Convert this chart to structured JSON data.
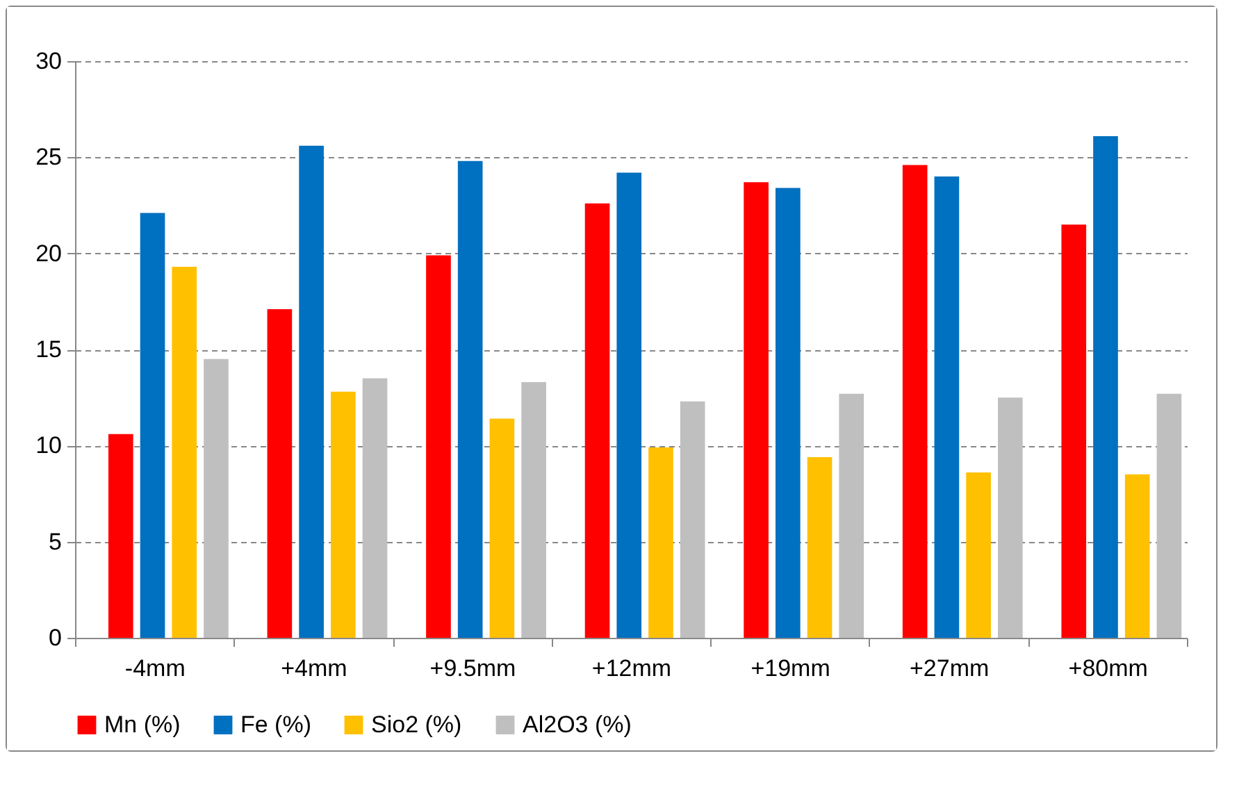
{
  "chart_data": {
    "type": "bar",
    "categories": [
      "-4mm",
      "+4mm",
      "+9.5mm",
      "+12mm",
      "+19mm",
      "+27mm",
      "+80mm"
    ],
    "series": [
      {
        "name": "Mn (%)",
        "color": "#ff0000",
        "values": [
          10.6,
          17.1,
          19.9,
          22.6,
          23.7,
          24.6,
          21.5
        ]
      },
      {
        "name": "Fe (%)",
        "color": "#0070c0",
        "values": [
          22.1,
          25.6,
          24.8,
          24.2,
          23.4,
          24.0,
          26.1
        ]
      },
      {
        "name": "Sio2 (%)",
        "color": "#ffc000",
        "values": [
          19.3,
          12.8,
          11.4,
          9.9,
          9.4,
          8.6,
          8.5
        ]
      },
      {
        "name": "Al2O3 (%)",
        "color": "#bfbfbf",
        "values": [
          14.5,
          13.5,
          13.3,
          12.3,
          12.7,
          12.5,
          12.7
        ]
      }
    ],
    "ylim": [
      0,
      30
    ],
    "yticks": [
      0,
      5,
      10,
      15,
      20,
      25,
      30
    ],
    "grid": "y",
    "legend": "bottom"
  }
}
